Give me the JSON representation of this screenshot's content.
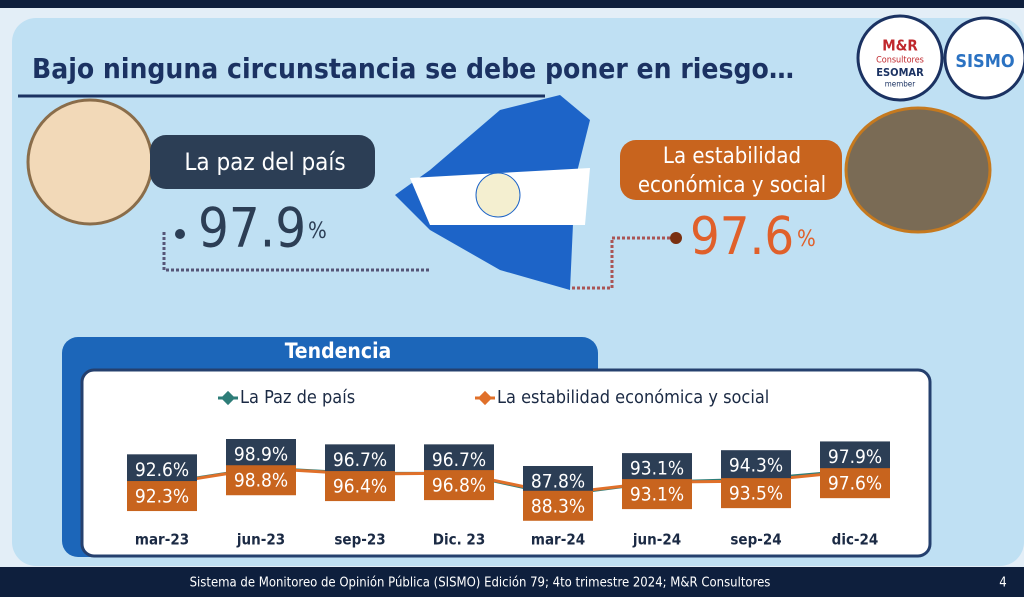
{
  "header": {
    "title": "Bajo ninguna circunstancia se debe poner en riesgo…"
  },
  "logos": {
    "mr": "M&R",
    "mr_sub": "Consultores",
    "esomar": "ESOMAR",
    "member": "member",
    "sismo": "SISMO"
  },
  "left": {
    "label": "La paz del país",
    "value": "97.9",
    "unit": "%"
  },
  "right": {
    "label_1": "La estabilidad",
    "label_2": "económica y social",
    "value": "97.6",
    "unit": "%"
  },
  "chart_data": {
    "type": "line",
    "title": "Tendencia",
    "categories": [
      "mar-23",
      "jun-23",
      "sep-23",
      "Dic. 23",
      "mar-24",
      "jun-24",
      "sep-24",
      "dic-24"
    ],
    "series": [
      {
        "name": "La Paz de país",
        "color": "#2e7d78",
        "values": [
          92.6,
          98.9,
          96.7,
          96.7,
          87.8,
          93.1,
          94.3,
          97.9
        ],
        "value_labels": [
          "92.6%",
          "98.9%",
          "96.7%",
          "96.7%",
          "87.8%",
          "93.1%",
          "94.3%",
          "97.9%"
        ]
      },
      {
        "name": "La estabilidad económica y social",
        "color": "#e0702a",
        "values": [
          92.3,
          98.8,
          96.4,
          96.8,
          88.3,
          93.1,
          93.5,
          97.6
        ],
        "value_labels": [
          "92.3%",
          "98.8%",
          "96.4%",
          "96.8%",
          "88.3%",
          "93.1%",
          "93.5%",
          "97.6%"
        ]
      }
    ]
  },
  "footer": {
    "source": "Sistema de Monitoreo de Opinión Pública (SISMO) Edición 79; 4to trimestre 2024; M&R Consultores",
    "page": "4"
  }
}
